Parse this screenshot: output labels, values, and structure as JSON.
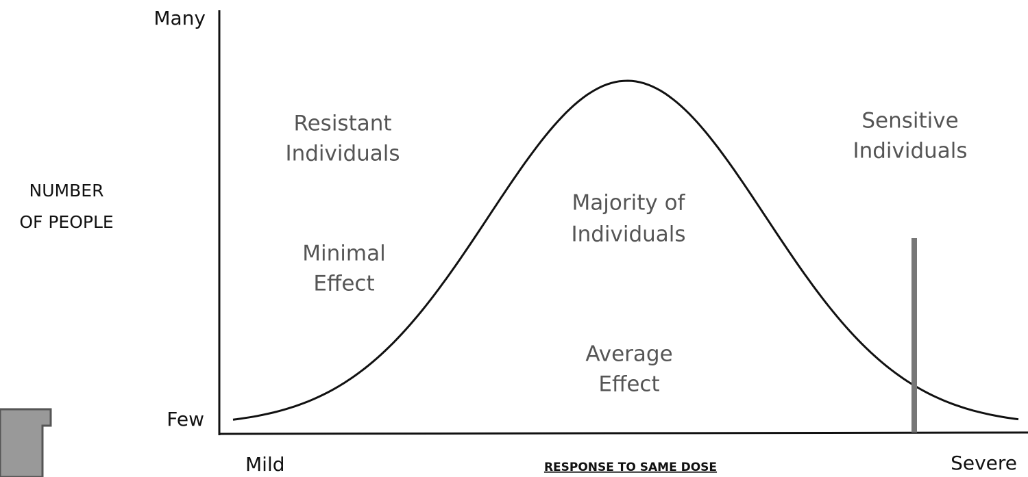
{
  "y_axis": {
    "top": "Many",
    "bottom": "Few",
    "label": [
      "NUMBER",
      "OF PEOPLE"
    ]
  },
  "x_axis": {
    "left": "Mild",
    "label": "RESPONSE TO SAME DOSE",
    "right": "Severe"
  },
  "annotations": [
    {
      "lines": [
        "Resistant",
        "Individuals"
      ]
    },
    {
      "lines": [
        "Minimal",
        "Effect"
      ]
    },
    {
      "lines": [
        "Majority of",
        "Individuals"
      ]
    },
    {
      "lines": [
        "Average",
        "Effect"
      ]
    },
    {
      "lines": [
        "Sensitive",
        "Individuals"
      ]
    }
  ]
}
